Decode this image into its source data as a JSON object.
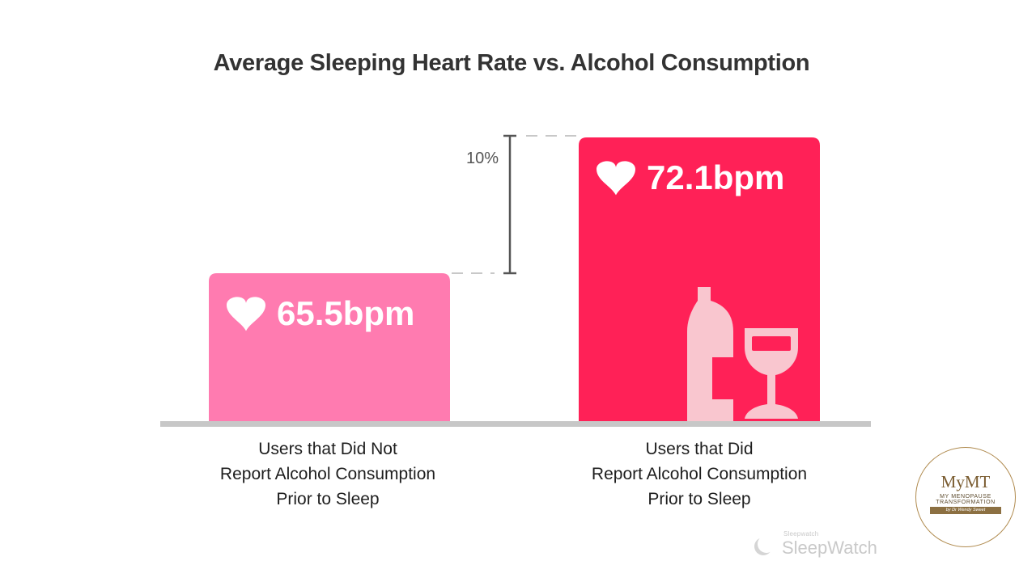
{
  "chart_data": {
    "type": "bar",
    "title": "Average Sleeping Heart Rate vs. Alcohol Consumption",
    "categories": [
      [
        "Users that Did Not",
        "Report Alcohol Consumption",
        "Prior to Sleep"
      ],
      [
        "Users that Did",
        "Report Alcohol Consumption",
        "Prior to Sleep"
      ]
    ],
    "values": [
      65.5,
      72.1
    ],
    "value_labels": [
      "65.5bpm",
      "72.1bpm"
    ],
    "unit": "bpm",
    "bar_colors": [
      "#ff7bb0",
      "#ff2157"
    ],
    "difference_annotation": "10%",
    "icons": [
      "heart-icon",
      "heart-icon"
    ],
    "alcohol_icon": "wine-bottle-and-glass-icon",
    "grid": false,
    "legend": "none"
  },
  "watermark": {
    "small_text": "Sleepwatch",
    "brand": "SleepWatch"
  },
  "logo": {
    "brand": "MyMT",
    "line1": "MY MENOPAUSE",
    "line2": "TRANSFORMATION",
    "tagline": "by Dr Wendy Sweet"
  }
}
